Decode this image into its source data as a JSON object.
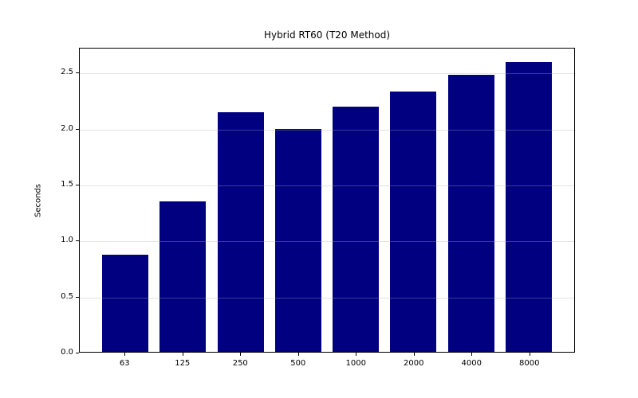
{
  "figure": {
    "background": "#ffffff",
    "text_color": "#000000"
  },
  "chart_data": {
    "type": "bar",
    "title": "Hybrid RT60 (T20 Method)",
    "xlabel": "",
    "ylabel": "Seconds",
    "categories": [
      "63",
      "125",
      "250",
      "500",
      "1000",
      "2000",
      "4000",
      "8000"
    ],
    "values": [
      0.87,
      1.35,
      2.15,
      2.0,
      2.2,
      2.34,
      2.49,
      2.6
    ],
    "bar_color": "#000080",
    "bar_width_fraction": 0.8,
    "x_margin_fraction": 0.05,
    "ylim": [
      0,
      2.724
    ],
    "yticks": [
      "0.0",
      "0.5",
      "1.0",
      "1.5",
      "2.0",
      "2.5"
    ],
    "grid": "horizontal, drawn above bars",
    "gridline_color": "rgba(176,176,176,0.35)",
    "legend": "none"
  }
}
